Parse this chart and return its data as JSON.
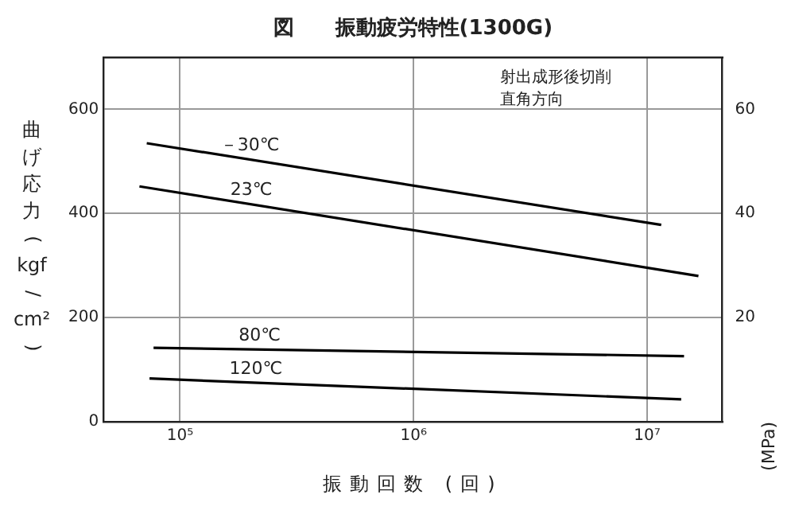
{
  "chart_data": {
    "type": "line",
    "title": "図　　振動疲労特性(1300G)",
    "xlabel": "振動回数 (回)",
    "ylabel": "曲げ応力(kgf/cm²)",
    "y2label": "(MPa)",
    "log": "x",
    "grid": true,
    "legend": false,
    "marker": "none",
    "line_style": "solid",
    "xlim": [
      47000,
      21000000
    ],
    "xticks": [
      {
        "value": 100000,
        "label": "10⁵"
      },
      {
        "value": 1000000,
        "label": "10⁶"
      },
      {
        "value": 10000000,
        "label": "10⁷"
      }
    ],
    "ylim": [
      0,
      700
    ],
    "yticks": [
      0,
      200,
      400,
      600
    ],
    "y2lim": [
      0,
      70
    ],
    "y2ticks": [
      20,
      40,
      60
    ],
    "annotations": [
      "射出成形後切削",
      "直角方向"
    ],
    "series": [
      {
        "name": "－30℃",
        "color": "#000000",
        "x": [
          72000,
          11500000
        ],
        "values": [
          535,
          378
        ]
      },
      {
        "name": "23℃",
        "color": "#000000",
        "x": [
          67000,
          16600000
        ],
        "values": [
          452,
          280
        ]
      },
      {
        "name": "80℃",
        "color": "#000000",
        "x": [
          77000,
          14400000
        ],
        "values": [
          142,
          126
        ]
      },
      {
        "name": "120℃",
        "color": "#000000",
        "x": [
          74000,
          14000000
        ],
        "values": [
          83,
          43
        ]
      }
    ]
  }
}
